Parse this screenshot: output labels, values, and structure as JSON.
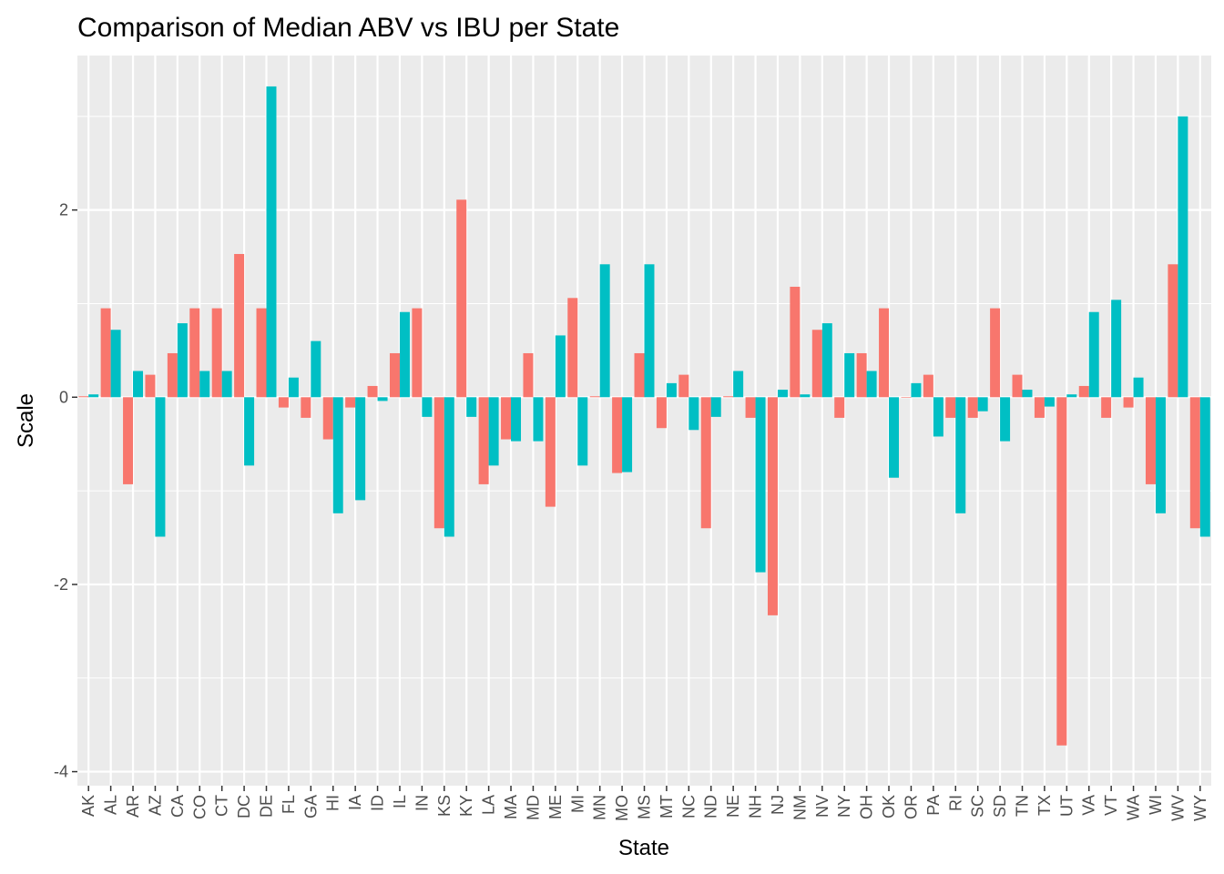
{
  "chart_data": {
    "type": "bar",
    "title": "Comparison of Median ABV vs IBU per State",
    "xlabel": "State",
    "ylabel": "Scale",
    "ylim": [
      -4.15,
      3.65
    ],
    "yticks": [
      -4,
      -2,
      0,
      2
    ],
    "grid": true,
    "categories": [
      "AK",
      "AL",
      "AR",
      "AZ",
      "CA",
      "CO",
      "CT",
      "DC",
      "DE",
      "FL",
      "GA",
      "HI",
      "IA",
      "ID",
      "IL",
      "IN",
      "KS",
      "KY",
      "LA",
      "MA",
      "MD",
      "ME",
      "MI",
      "MN",
      "MO",
      "MS",
      "MT",
      "NC",
      "ND",
      "NE",
      "NH",
      "NJ",
      "NM",
      "NV",
      "NY",
      "OH",
      "OK",
      "OR",
      "PA",
      "RI",
      "SC",
      "SD",
      "TN",
      "TX",
      "UT",
      "VA",
      "VT",
      "WA",
      "WI",
      "WV",
      "WY"
    ],
    "series": [
      {
        "color": "#F8766D",
        "values": [
          0.01,
          0.95,
          -0.93,
          0.24,
          0.47,
          0.95,
          0.95,
          1.53,
          0.95,
          -0.11,
          -0.22,
          -0.45,
          -0.11,
          0.12,
          0.47,
          0.95,
          -1.4,
          2.11,
          -0.93,
          -0.45,
          0.47,
          -1.17,
          1.06,
          0.01,
          -0.81,
          0.47,
          -0.33,
          0.24,
          -1.4,
          0.01,
          -0.22,
          -2.33,
          1.18,
          0.72,
          -0.22,
          0.47,
          0.95,
          0.0,
          0.24,
          -0.22,
          -0.22,
          0.95,
          0.24,
          -0.22,
          -3.72,
          0.12,
          -0.22,
          -0.11,
          -0.93,
          1.42,
          -1.4
        ]
      },
      {
        "color": "#00BFC4",
        "values": [
          0.03,
          0.72,
          0.28,
          -1.49,
          0.79,
          0.28,
          0.28,
          -0.73,
          3.32,
          0.21,
          0.6,
          -1.24,
          -1.1,
          -0.04,
          0.91,
          -0.21,
          -1.49,
          -0.21,
          -0.73,
          -0.47,
          -0.47,
          0.66,
          -0.73,
          1.42,
          -0.8,
          1.42,
          0.15,
          -0.35,
          -0.21,
          0.28,
          -1.87,
          0.08,
          0.03,
          0.79,
          0.47,
          0.28,
          -0.86,
          0.15,
          -0.42,
          -1.24,
          -0.15,
          -0.47,
          0.08,
          -0.1,
          0.03,
          0.91,
          1.04,
          0.21,
          -1.24,
          3.0,
          -1.49
        ]
      }
    ]
  }
}
